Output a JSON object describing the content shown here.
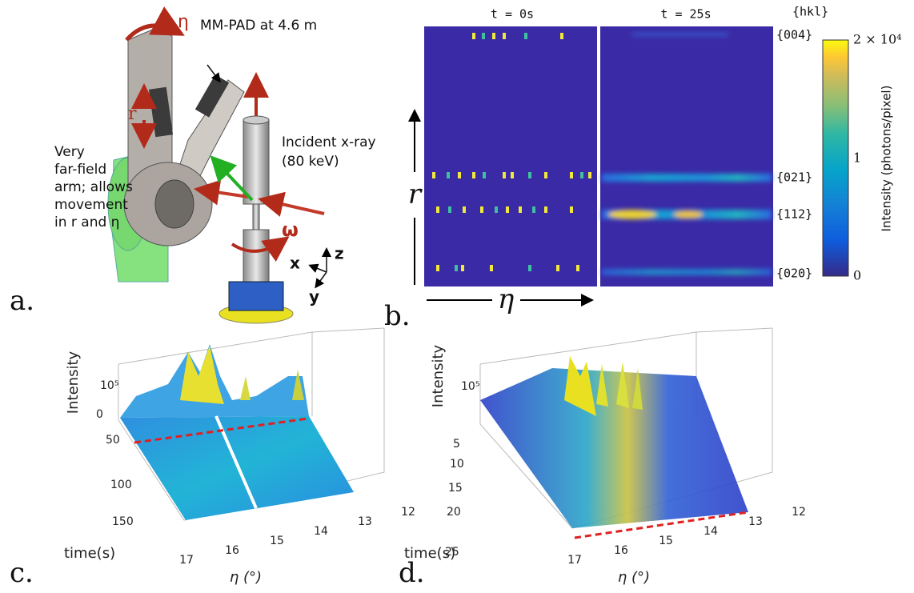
{
  "panel_a": {
    "label": "a.",
    "detector": "MM-PAD at 4.6 m",
    "eta": "η",
    "r": "r",
    "arm_text": [
      "Very",
      "far-field",
      "arm; allows",
      "movement",
      "in r and η"
    ],
    "beam": [
      "Incident x-ray",
      "(80 keV)"
    ],
    "omega": "ω",
    "axes": {
      "z": "z",
      "x": "x",
      "y": "y"
    }
  },
  "panel_b": {
    "label": "b.",
    "titles": [
      "t = 0s",
      "t = 25s"
    ],
    "hkl_header": "{hkl}",
    "hkl": [
      "{004}",
      "{021}",
      "{112}",
      "{020}"
    ],
    "r_axis": "r",
    "eta_axis": "η",
    "colorbar": {
      "label": "Intensity (photons/pixel)",
      "ticks": [
        "2 × 10⁴",
        "1",
        "0"
      ]
    }
  },
  "panel_c": {
    "label": "c.",
    "z_label": "Intensity",
    "z_ticks": [
      "10⁵",
      "0"
    ],
    "time_label": "time(s)",
    "time_ticks": [
      "50",
      "100",
      "150"
    ],
    "eta_label": "η (°)",
    "eta_ticks": [
      "17",
      "16",
      "15",
      "14",
      "13",
      "12"
    ]
  },
  "panel_d": {
    "label": "d.",
    "z_label": "Intensity",
    "z_ticks": [
      "10⁵"
    ],
    "time_label": "time(s)",
    "time_ticks": [
      "5",
      "10",
      "15",
      "20",
      "25"
    ],
    "eta_label": "η (°)",
    "eta_ticks": [
      "17",
      "16",
      "15",
      "14",
      "13",
      "12"
    ]
  }
}
